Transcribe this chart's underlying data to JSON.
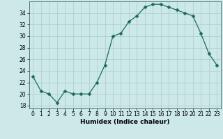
{
  "x": [
    0,
    1,
    2,
    3,
    4,
    5,
    6,
    7,
    8,
    9,
    10,
    11,
    12,
    13,
    14,
    15,
    16,
    17,
    18,
    19,
    20,
    21,
    22,
    23
  ],
  "y": [
    23,
    20.5,
    20,
    18.5,
    20.5,
    20,
    20,
    20,
    22,
    25,
    30,
    30.5,
    32.5,
    33.5,
    35,
    35.5,
    35.5,
    35,
    34.5,
    34,
    33.5,
    30.5,
    27,
    25
  ],
  "line_color": "#1a6b5a",
  "marker": "D",
  "marker_size": 2.5,
  "bg_color": "#cce8e8",
  "grid_color": "#b0cfcf",
  "xlabel": "Humidex (Indice chaleur)",
  "ylim": [
    17.5,
    36.0
  ],
  "xlim": [
    -0.5,
    23.5
  ],
  "yticks": [
    18,
    20,
    22,
    24,
    26,
    28,
    30,
    32,
    34
  ],
  "xticks": [
    0,
    1,
    2,
    3,
    4,
    5,
    6,
    7,
    8,
    9,
    10,
    11,
    12,
    13,
    14,
    15,
    16,
    17,
    18,
    19,
    20,
    21,
    22,
    23
  ],
  "tick_fontsize": 5.5,
  "xlabel_fontsize": 6.5,
  "spine_color": "#446666"
}
